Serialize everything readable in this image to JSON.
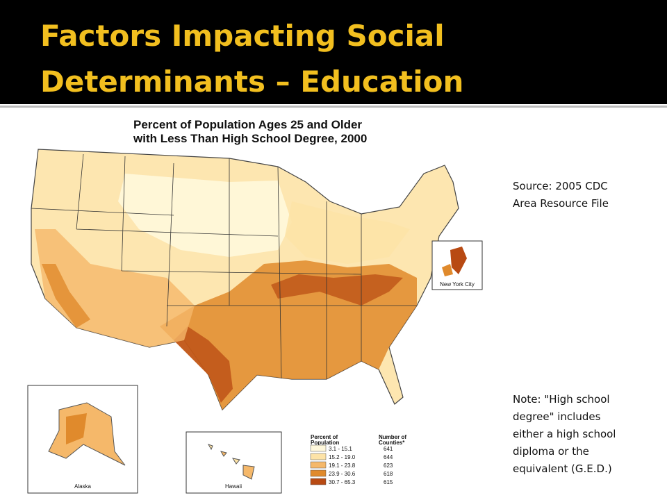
{
  "header": {
    "title_lines": [
      "Factors Impacting Social",
      "Determinants – Education"
    ]
  },
  "map": {
    "title_lines": [
      "Percent of Population Ages 25 and Older",
      "with Less Than High School Degree, 2000"
    ],
    "insets": [
      "Alaska",
      "Hawaii",
      "New York City"
    ],
    "legend": {
      "headers": [
        [
          "Percent of",
          "Population"
        ],
        [
          "Number of",
          "Counties*"
        ]
      ],
      "rows": [
        [
          "3.1 - 15.1",
          641
        ],
        [
          "15.2 - 19.0",
          644
        ],
        [
          "19.1 - 23.8",
          623
        ],
        [
          "23.9 - 30.6",
          618
        ],
        [
          "30.7 - 65.3",
          615
        ]
      ]
    }
  },
  "sidebar": {
    "source_lines": [
      "Source: 2005 CDC",
      "Area Resource File"
    ],
    "note_lines": [
      "Note: \"High school",
      "degree\" includes",
      "either a high school",
      "diploma or the",
      "equivalent (G.E.D.)"
    ]
  }
}
